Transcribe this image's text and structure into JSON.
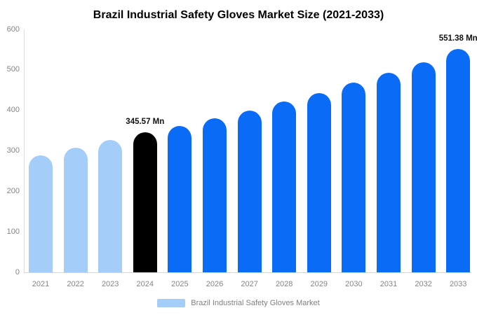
{
  "chart_data": {
    "type": "bar",
    "title": "Brazil Industrial Safety Gloves Market Size (2021-2033)",
    "categories": [
      "2021",
      "2022",
      "2023",
      "2024",
      "2025",
      "2026",
      "2027",
      "2028",
      "2029",
      "2030",
      "2031",
      "2032",
      "2033"
    ],
    "values": [
      289,
      308,
      327,
      345.57,
      361,
      380,
      399,
      422,
      442,
      468,
      492,
      518,
      551.38
    ],
    "bar_colors": [
      "#A5CDF9",
      "#A5CDF9",
      "#A5CDF9",
      "#000000",
      "#0A6CF6",
      "#0A6CF6",
      "#0A6CF6",
      "#0A6CF6",
      "#0A6CF6",
      "#0A6CF6",
      "#0A6CF6",
      "#0A6CF6",
      "#0A6CF6"
    ],
    "xlabel": "",
    "ylabel": "",
    "ylim": [
      0,
      600
    ],
    "yticks": [
      0,
      100,
      200,
      300,
      400,
      500,
      600
    ],
    "grid": false,
    "annotations": [
      {
        "category": "2024",
        "text": "345.57 Mn"
      },
      {
        "category": "2033",
        "text": "551.38 Mn"
      }
    ],
    "legend_position": "bottom",
    "legend": [
      {
        "label": "Brazil Industrial Safety Gloves Market",
        "color": "#A5CDF9"
      }
    ]
  },
  "colors": {
    "light_blue": "#A5CDF9",
    "blue": "#0A6CF6",
    "black": "#000000",
    "axis_line": "#D4D4D4",
    "tick_text": "#848484",
    "annotation_text": "#111111",
    "background": "#FFFFFF"
  }
}
